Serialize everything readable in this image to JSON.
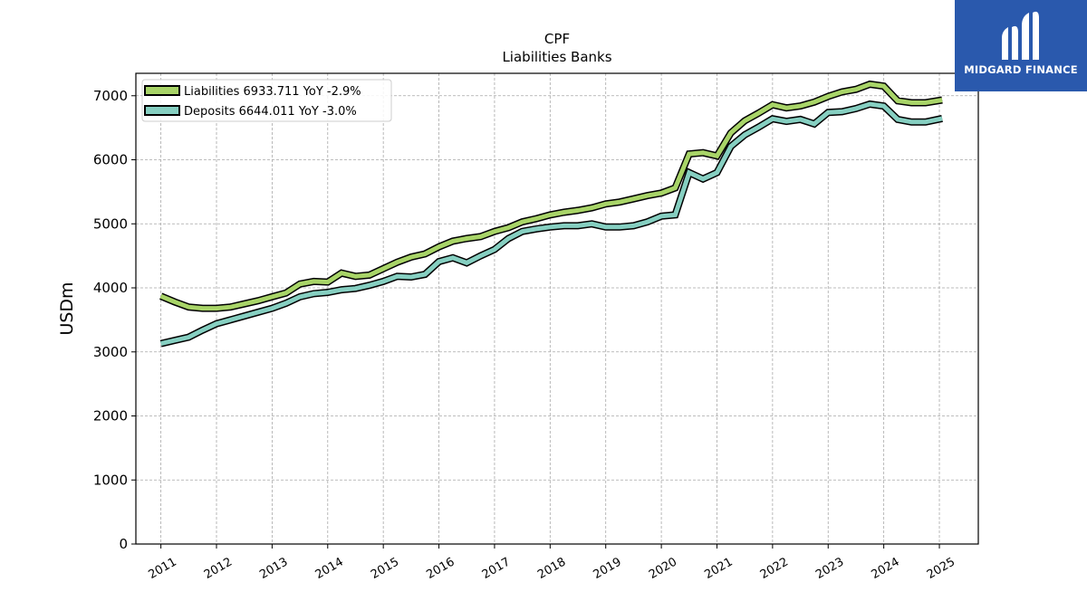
{
  "chart_data": {
    "type": "line",
    "title": "CPF",
    "subtitle": "Liabilities Banks",
    "ylabel": "USDm",
    "xlabel": "",
    "ylim": [
      0,
      7350
    ],
    "xlim": [
      2010.55,
      2025.7
    ],
    "yticks": [
      0,
      1000,
      2000,
      3000,
      4000,
      5000,
      6000,
      7000
    ],
    "xticks": [
      2011,
      2012,
      2013,
      2014,
      2015,
      2016,
      2017,
      2018,
      2019,
      2020,
      2021,
      2022,
      2023,
      2024,
      2025
    ],
    "xtick_labels": [
      "2011",
      "2012",
      "2013",
      "2014",
      "2015",
      "2016",
      "2017",
      "2018",
      "2019",
      "2020",
      "2021",
      "2022",
      "2023",
      "2024",
      "2025"
    ],
    "grid": true,
    "legend_position": "upper-left",
    "series": [
      {
        "name": "Liabilities",
        "legend_label": "Liabilities  6933.711 YoY -2.9%",
        "color": "#a8d468",
        "points": [
          [
            2011.0,
            3870
          ],
          [
            2011.25,
            3780
          ],
          [
            2011.5,
            3700
          ],
          [
            2011.75,
            3680
          ],
          [
            2012.0,
            3680
          ],
          [
            2012.25,
            3700
          ],
          [
            2012.5,
            3750
          ],
          [
            2012.75,
            3800
          ],
          [
            2013.0,
            3860
          ],
          [
            2013.25,
            3920
          ],
          [
            2013.5,
            4060
          ],
          [
            2013.75,
            4100
          ],
          [
            2014.0,
            4090
          ],
          [
            2014.25,
            4230
          ],
          [
            2014.5,
            4180
          ],
          [
            2014.75,
            4200
          ],
          [
            2015.0,
            4300
          ],
          [
            2015.25,
            4400
          ],
          [
            2015.5,
            4480
          ],
          [
            2015.75,
            4530
          ],
          [
            2016.0,
            4640
          ],
          [
            2016.25,
            4730
          ],
          [
            2016.5,
            4770
          ],
          [
            2016.75,
            4800
          ],
          [
            2017.0,
            4880
          ],
          [
            2017.25,
            4940
          ],
          [
            2017.5,
            5030
          ],
          [
            2017.75,
            5080
          ],
          [
            2018.0,
            5140
          ],
          [
            2018.25,
            5180
          ],
          [
            2018.5,
            5210
          ],
          [
            2018.75,
            5250
          ],
          [
            2019.0,
            5310
          ],
          [
            2019.25,
            5340
          ],
          [
            2019.5,
            5390
          ],
          [
            2019.75,
            5440
          ],
          [
            2020.0,
            5480
          ],
          [
            2020.25,
            5560
          ],
          [
            2020.5,
            6090
          ],
          [
            2020.75,
            6110
          ],
          [
            2021.0,
            6060
          ],
          [
            2021.25,
            6420
          ],
          [
            2021.5,
            6610
          ],
          [
            2021.75,
            6730
          ],
          [
            2022.0,
            6860
          ],
          [
            2022.25,
            6810
          ],
          [
            2022.5,
            6840
          ],
          [
            2022.75,
            6900
          ],
          [
            2023.0,
            6990
          ],
          [
            2023.25,
            7060
          ],
          [
            2023.5,
            7100
          ],
          [
            2023.75,
            7180
          ],
          [
            2024.0,
            7150
          ],
          [
            2024.25,
            6920
          ],
          [
            2024.5,
            6890
          ],
          [
            2024.75,
            6890
          ],
          [
            2025.05,
            6933.711
          ]
        ]
      },
      {
        "name": "Deposits",
        "legend_label": "Deposits  6644.011 YoY -3.0%",
        "color": "#86cfc1",
        "points": [
          [
            2011.0,
            3130
          ],
          [
            2011.25,
            3180
          ],
          [
            2011.5,
            3230
          ],
          [
            2011.75,
            3340
          ],
          [
            2012.0,
            3440
          ],
          [
            2012.25,
            3500
          ],
          [
            2012.5,
            3560
          ],
          [
            2012.75,
            3620
          ],
          [
            2013.0,
            3680
          ],
          [
            2013.25,
            3760
          ],
          [
            2013.5,
            3860
          ],
          [
            2013.75,
            3910
          ],
          [
            2014.0,
            3930
          ],
          [
            2014.25,
            3970
          ],
          [
            2014.5,
            3990
          ],
          [
            2014.75,
            4040
          ],
          [
            2015.0,
            4100
          ],
          [
            2015.25,
            4180
          ],
          [
            2015.5,
            4170
          ],
          [
            2015.75,
            4210
          ],
          [
            2016.0,
            4410
          ],
          [
            2016.25,
            4470
          ],
          [
            2016.5,
            4390
          ],
          [
            2016.75,
            4500
          ],
          [
            2017.0,
            4600
          ],
          [
            2017.25,
            4770
          ],
          [
            2017.5,
            4880
          ],
          [
            2017.75,
            4920
          ],
          [
            2018.0,
            4950
          ],
          [
            2018.25,
            4970
          ],
          [
            2018.5,
            4970
          ],
          [
            2018.75,
            5000
          ],
          [
            2019.0,
            4950
          ],
          [
            2019.25,
            4950
          ],
          [
            2019.5,
            4970
          ],
          [
            2019.75,
            5030
          ],
          [
            2020.0,
            5120
          ],
          [
            2020.25,
            5140
          ],
          [
            2020.5,
            5800
          ],
          [
            2020.75,
            5700
          ],
          [
            2021.0,
            5800
          ],
          [
            2021.25,
            6210
          ],
          [
            2021.5,
            6390
          ],
          [
            2021.75,
            6510
          ],
          [
            2022.0,
            6640
          ],
          [
            2022.25,
            6600
          ],
          [
            2022.5,
            6630
          ],
          [
            2022.75,
            6560
          ],
          [
            2023.0,
            6740
          ],
          [
            2023.25,
            6750
          ],
          [
            2023.5,
            6800
          ],
          [
            2023.75,
            6870
          ],
          [
            2024.0,
            6840
          ],
          [
            2024.25,
            6630
          ],
          [
            2024.5,
            6590
          ],
          [
            2024.75,
            6590
          ],
          [
            2025.05,
            6644.011
          ]
        ]
      }
    ]
  },
  "logo": {
    "text": "MIDGARD FINANCE",
    "background": "#2a59ad",
    "icon_name": "midgard-finance-logo-icon"
  }
}
